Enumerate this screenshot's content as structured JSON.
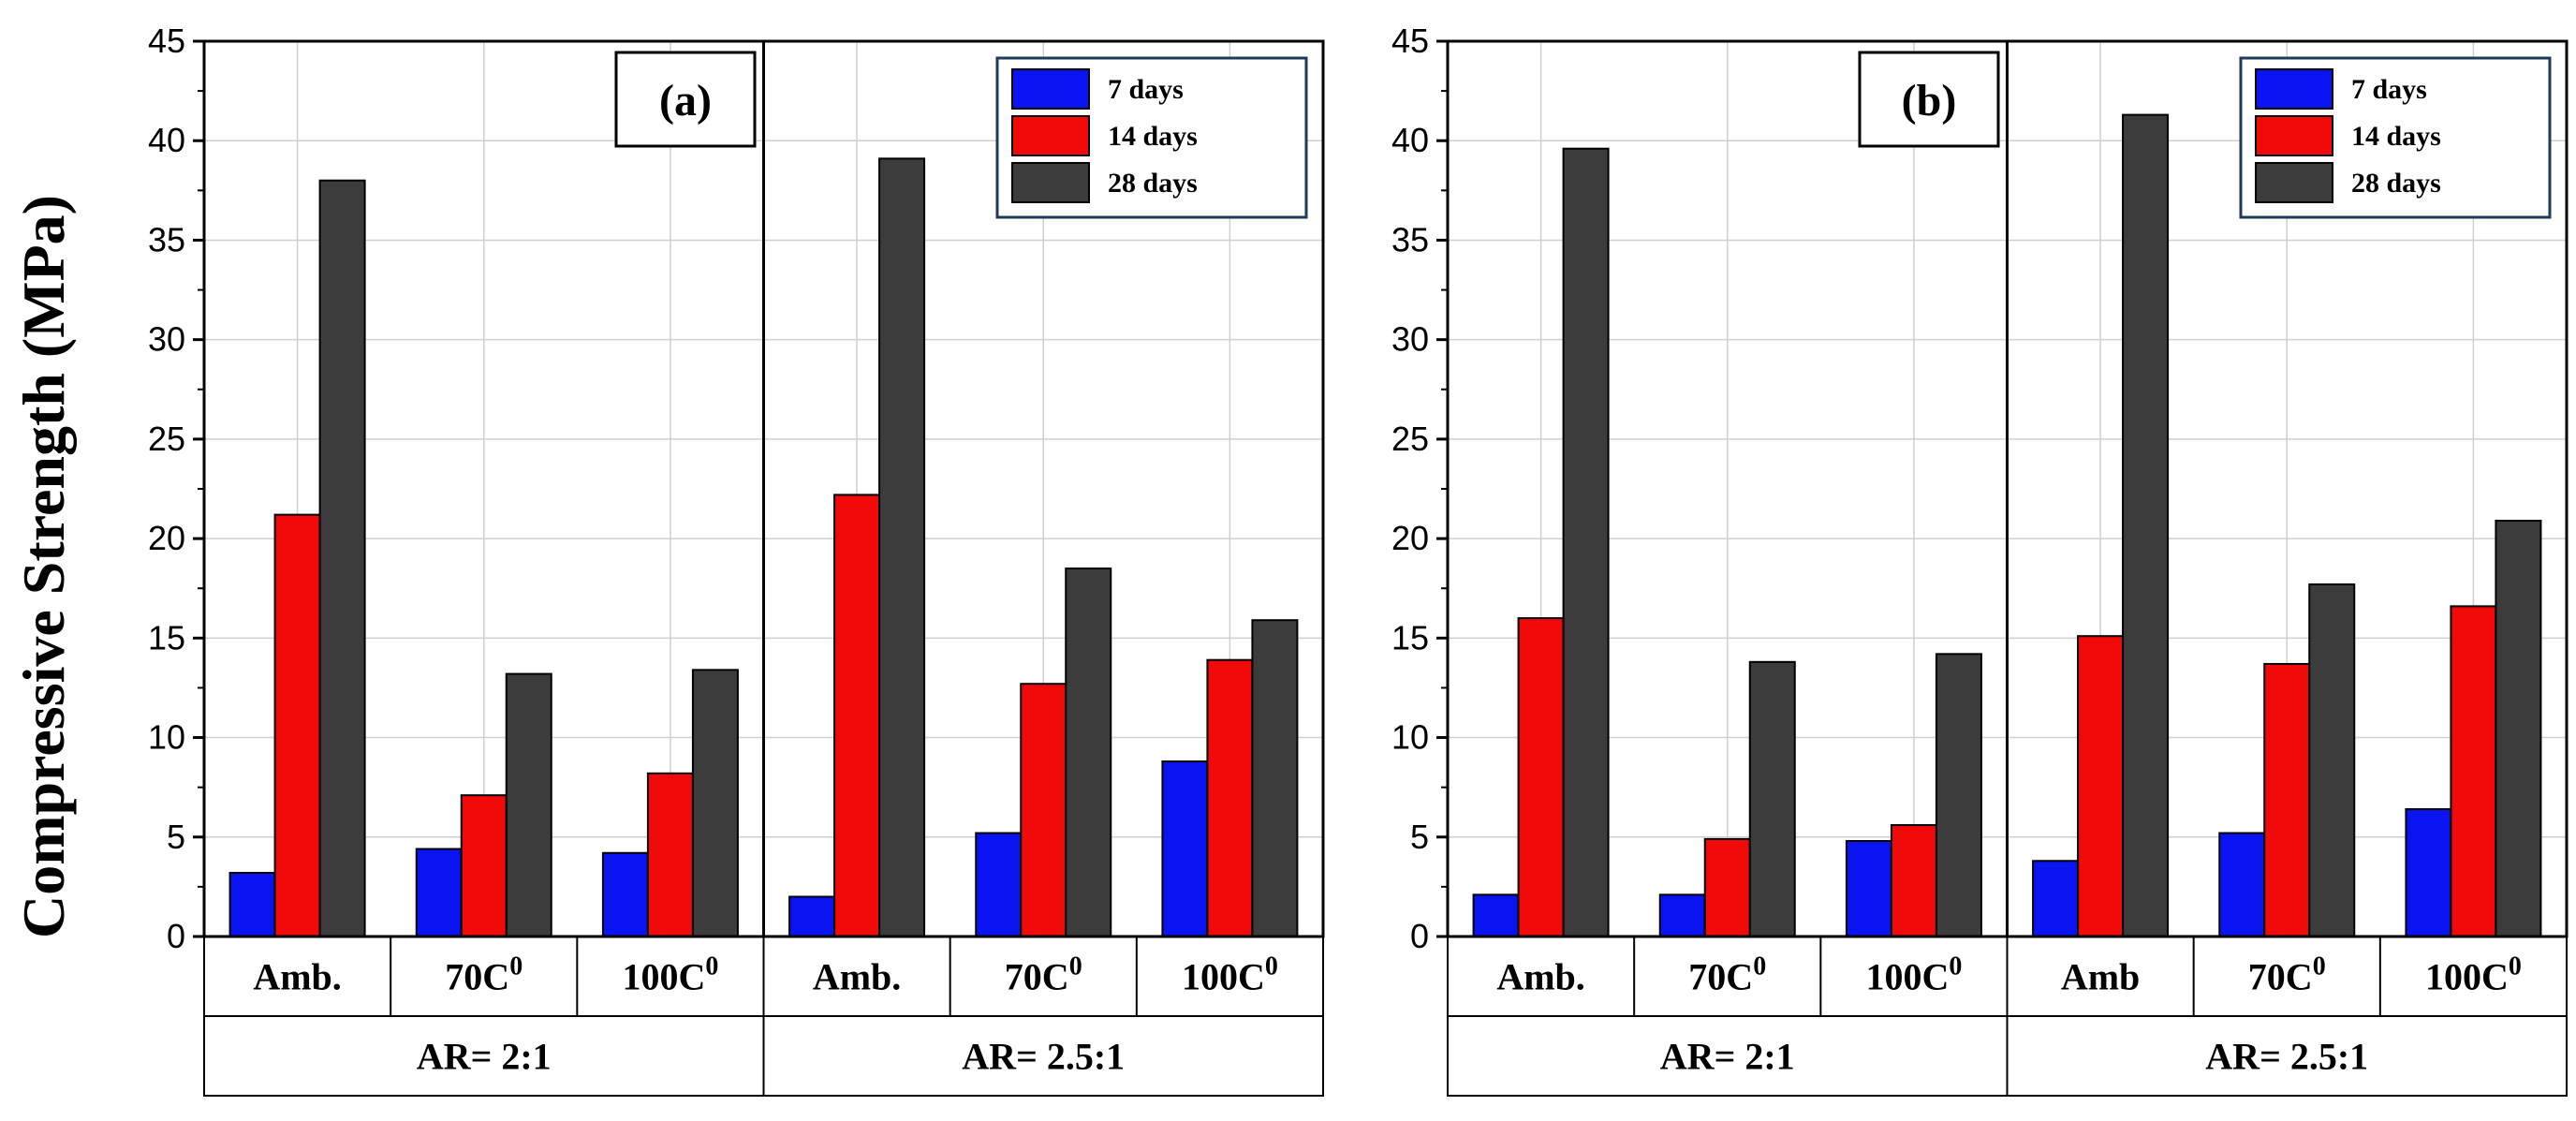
{
  "ylabel": "Compressive Strength (MPa)",
  "colors": {
    "7 days": "#0a14f0",
    "14 days": "#f00a0a",
    "28 days": "#3c3c3c"
  },
  "chart_data": [
    {
      "type": "bar",
      "panel_label": "(a)",
      "ylim": [
        0,
        45
      ],
      "yticks": [
        "0",
        "5",
        "10",
        "15",
        "20",
        "25",
        "30",
        "35",
        "40",
        "45"
      ],
      "grid": true,
      "legend_placement": "top-right",
      "legend": [
        "7 days",
        "14 days",
        "28 days"
      ],
      "groups": [
        {
          "label": "AR= 2:1",
          "categories": [
            "Amb.",
            "70C",
            "100C"
          ],
          "superscripts": [
            "",
            "0",
            "0"
          ]
        },
        {
          "label": "AR= 2.5:1",
          "categories": [
            "Amb.",
            "70C",
            "100C"
          ],
          "superscripts": [
            "",
            "0",
            "0"
          ]
        }
      ],
      "series": [
        {
          "name": "7 days",
          "values": [
            3.2,
            4.4,
            4.2,
            2.0,
            5.2,
            8.8
          ]
        },
        {
          "name": "14 days",
          "values": [
            21.2,
            7.1,
            8.2,
            22.2,
            12.7,
            13.9
          ]
        },
        {
          "name": "28 days",
          "values": [
            38.0,
            13.2,
            13.4,
            39.1,
            18.5,
            15.9
          ]
        }
      ]
    },
    {
      "type": "bar",
      "panel_label": "(b)",
      "ylim": [
        0,
        45
      ],
      "yticks": [
        "0",
        "5",
        "10",
        "15",
        "20",
        "25",
        "30",
        "35",
        "40",
        "45"
      ],
      "grid": true,
      "legend_placement": "top-right",
      "legend": [
        "7 days",
        "14 days",
        "28 days"
      ],
      "groups": [
        {
          "label": "AR= 2:1",
          "categories": [
            "Amb.",
            "70C",
            "100C"
          ],
          "superscripts": [
            "",
            "0",
            "0"
          ]
        },
        {
          "label": "AR= 2.5:1",
          "categories": [
            "Amb",
            "70C",
            "100C"
          ],
          "superscripts": [
            "",
            "0",
            "0"
          ]
        }
      ],
      "series": [
        {
          "name": "7 days",
          "values": [
            2.1,
            2.1,
            4.8,
            3.8,
            5.2,
            6.4
          ]
        },
        {
          "name": "14 days",
          "values": [
            16.0,
            4.9,
            5.6,
            15.1,
            13.7,
            16.6
          ]
        },
        {
          "name": "28 days",
          "values": [
            39.6,
            13.8,
            14.2,
            41.3,
            17.7,
            20.9
          ]
        }
      ]
    }
  ]
}
